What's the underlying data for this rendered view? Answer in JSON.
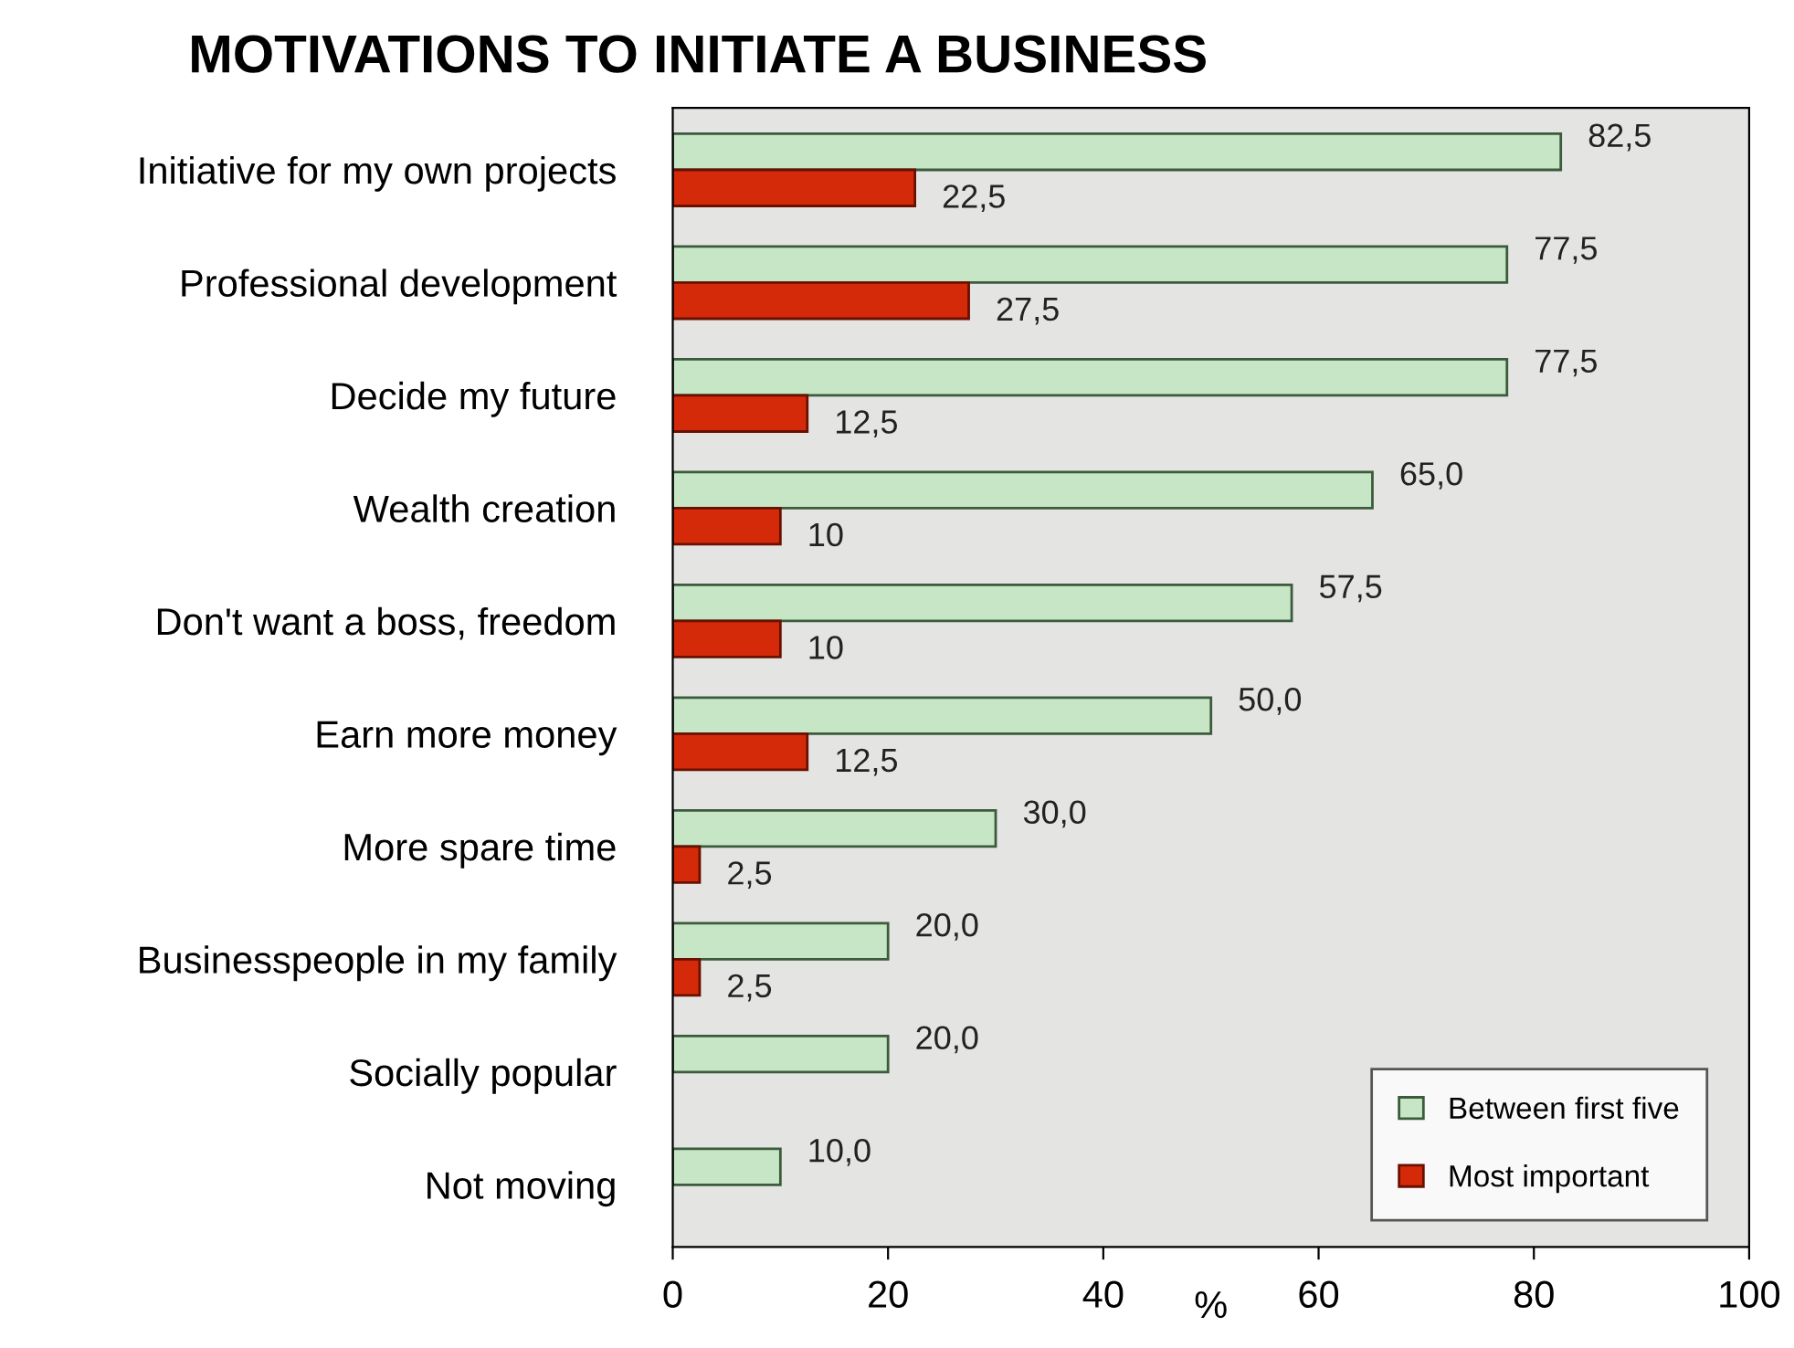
{
  "chart_data": {
    "type": "bar",
    "orientation": "horizontal",
    "title": "MOTIVATIONS TO INITIATE A BUSINESS",
    "xlabel": "%",
    "categories": [
      "Initiative for my own projects",
      "Professional development",
      "Decide my future",
      "Wealth creation",
      "Don't want a boss, freedom",
      "Earn more money",
      "More spare time",
      "Businesspeople in my family",
      "Socially popular",
      "Not moving"
    ],
    "series": [
      {
        "name": "Between first five",
        "color": "#c6e6c6",
        "values": [
          82.5,
          77.5,
          77.5,
          65.0,
          57.5,
          50.0,
          30.0,
          20.0,
          20.0,
          10.0
        ],
        "value_labels": [
          "82,5",
          "77,5",
          "77,5",
          "65,0",
          "57,5",
          "50,0",
          "30,0",
          "20,0",
          "20,0",
          "10,0"
        ]
      },
      {
        "name": "Most important",
        "color": "#d42a0a",
        "values": [
          22.5,
          27.5,
          12.5,
          10,
          10,
          12.5,
          2.5,
          2.5,
          null,
          null
        ],
        "value_labels": [
          "22,5",
          "27,5",
          "12,5",
          "10",
          "10",
          "12,5",
          "2,5",
          "2,5",
          null,
          null
        ]
      }
    ],
    "xlim": [
      0,
      100
    ],
    "xticks": [
      0,
      20,
      40,
      60,
      80,
      100
    ],
    "grid": false,
    "legend": "bottom right"
  }
}
